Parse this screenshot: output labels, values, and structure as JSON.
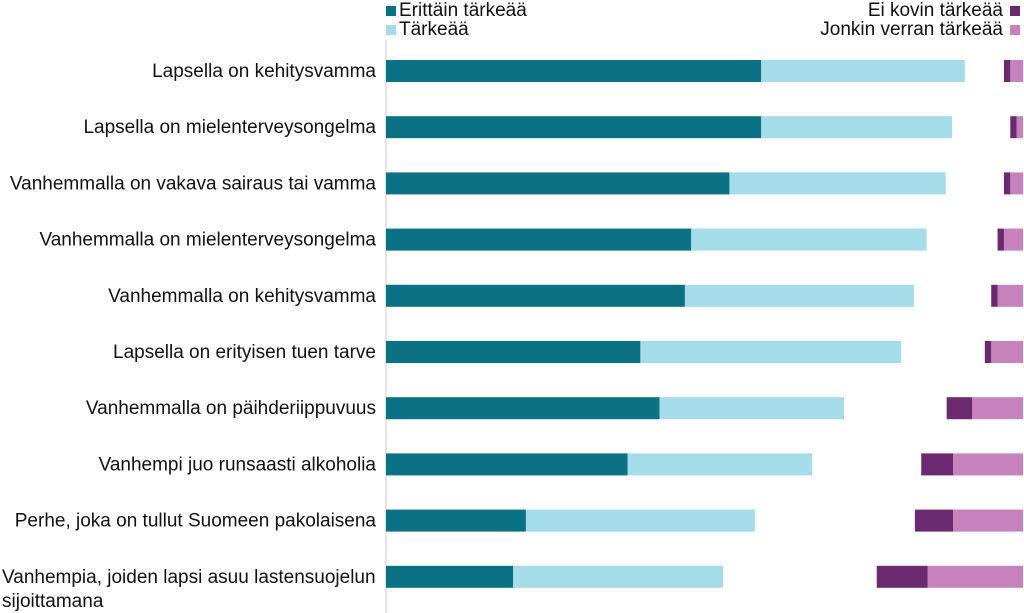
{
  "chart_data": {
    "type": "bar",
    "stacked": true,
    "orientation": "horizontal",
    "title": "",
    "xlabel": "",
    "ylabel": "",
    "categories": [
      "Lapsella on kehitysvamma",
      "Lapsella on mielenterveysongelma",
      "Vanhemmalla on vakava sairaus tai vamma",
      "Vanhemmalla on mielenterveysongelma",
      "Vanhemmalla on kehitysvamma",
      "Lapsella on erityisen tuen tarve",
      "Vanhemmalla on päihderiippuvuus",
      "Vanhempi juo runsaasti alkoholia",
      "Perhe, joka on tullut Suomeen pakolaisena",
      "Vanhempia, joiden lapsi asuu lastensuojelun sijoittamana"
    ],
    "positive_series": [
      {
        "name": "Erittäin tärkeää",
        "color": "#0b7285",
        "values": [
          59,
          59,
          54,
          48,
          47,
          40,
          43,
          38,
          22,
          20
        ]
      },
      {
        "name": "Tärkeää",
        "color": "#a5dce9",
        "values": [
          32,
          30,
          34,
          37,
          36,
          41,
          29,
          29,
          36,
          33
        ]
      }
    ],
    "negative_series": [
      {
        "name": "Ei kovin tärkeää",
        "color": "#6b2a6f",
        "values": [
          1,
          1,
          1,
          1,
          1,
          1,
          4,
          5,
          6,
          8
        ]
      },
      {
        "name": "Jonkin verran tärkeää",
        "color": "#c781bd",
        "values": [
          2,
          1,
          2,
          3,
          4,
          5,
          8,
          11,
          11,
          15
        ]
      }
    ],
    "xlim": [
      0,
      100
    ],
    "grid": false,
    "legend": {
      "positive": "top-left",
      "negative": "top-right"
    }
  }
}
